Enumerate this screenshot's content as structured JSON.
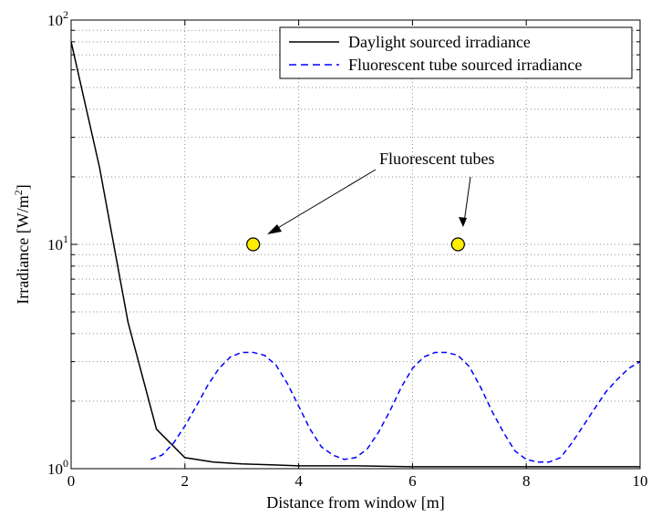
{
  "chart_data": {
    "type": "line",
    "xlabel": "Distance from window [m]",
    "ylabel": "Irradiance [W/m2]",
    "xlim": [
      0,
      10
    ],
    "ylim": [
      1,
      100
    ],
    "yscale": "log",
    "grid": true,
    "legend_position": "top-right",
    "x_ticks": [
      0,
      2,
      4,
      6,
      8,
      10
    ],
    "y_ticks": [
      1,
      10,
      100
    ],
    "y_tick_labels": [
      {
        "base": "10",
        "exp": "0"
      },
      {
        "base": "10",
        "exp": "1"
      },
      {
        "base": "10",
        "exp": "2"
      }
    ],
    "series": [
      {
        "name": "Daylight sourced irradiance",
        "style": "solid",
        "color": "#000000",
        "x": [
          0,
          0.5,
          1.0,
          1.5,
          2.0,
          2.5,
          3.0,
          3.5,
          4.0,
          5.0,
          6.0,
          7.0,
          8.0,
          9.0,
          10.0
        ],
        "y": [
          80,
          22,
          4.5,
          1.5,
          1.12,
          1.07,
          1.05,
          1.04,
          1.03,
          1.03,
          1.02,
          1.02,
          1.02,
          1.02,
          1.02
        ]
      },
      {
        "name": "Fluorescent tube sourced irradiance",
        "style": "dashed",
        "color": "#0000ff",
        "x": [
          1.4,
          1.6,
          1.8,
          2.0,
          2.2,
          2.4,
          2.6,
          2.8,
          3.0,
          3.2,
          3.4,
          3.6,
          3.8,
          4.0,
          4.2,
          4.4,
          4.6,
          4.8,
          5.0,
          5.2,
          5.4,
          5.6,
          5.8,
          6.0,
          6.2,
          6.4,
          6.6,
          6.8,
          7.0,
          7.2,
          7.4,
          7.6,
          7.8,
          8.0,
          8.2,
          8.4,
          8.6,
          8.8,
          9.0,
          9.2,
          9.4,
          9.6,
          9.8,
          10.0
        ],
        "y": [
          1.1,
          1.15,
          1.3,
          1.55,
          1.9,
          2.35,
          2.8,
          3.15,
          3.3,
          3.3,
          3.2,
          2.9,
          2.4,
          1.9,
          1.5,
          1.25,
          1.15,
          1.1,
          1.12,
          1.22,
          1.45,
          1.8,
          2.3,
          2.8,
          3.15,
          3.3,
          3.3,
          3.2,
          2.85,
          2.3,
          1.8,
          1.45,
          1.2,
          1.1,
          1.07,
          1.07,
          1.12,
          1.3,
          1.55,
          1.85,
          2.2,
          2.5,
          2.8,
          3.0
        ]
      }
    ],
    "markers": [
      {
        "x": 3.2,
        "y": 10,
        "color": "#ffee00"
      },
      {
        "x": 6.8,
        "y": 10,
        "color": "#ffee00"
      }
    ],
    "annotations": [
      {
        "text": "Fluorescent tubes"
      }
    ]
  }
}
